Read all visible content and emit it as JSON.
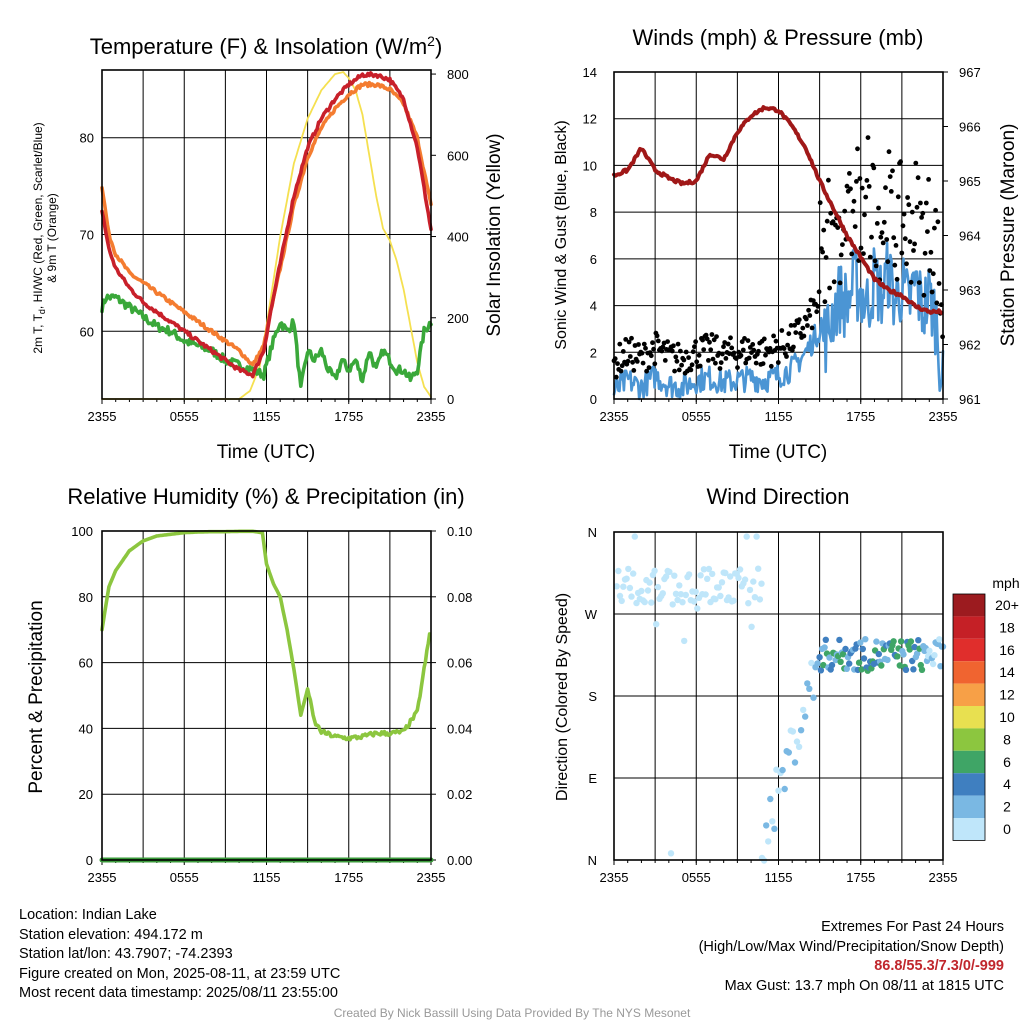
{
  "panels": {
    "temperature": {
      "title": "Temperature (F) & Insolation (W/m",
      "title_sup": "2",
      "title_close": ")",
      "ylabel_left_line1": "2m T, T",
      "ylabel_left_sub": "d",
      "ylabel_left_line1b": ", HI/WC (Red, Green, Scarlet/Blue)",
      "ylabel_left_line2": "& 9m T (Orange)",
      "ylabel_right": "Solar Insolation (Yellow)",
      "xlabel": "Time (UTC)"
    },
    "winds": {
      "title": "Winds (mph) & Pressure (mb)",
      "ylabel_left": "Sonic Wind & Gust (Blue, Black)",
      "ylabel_right": "Station Pressure (Maroon)",
      "xlabel": "Time (UTC)"
    },
    "humidity": {
      "title": "Relative Humidity (%) & Precipitation (in)",
      "ylabel_left": "Percent & Precipitation"
    },
    "direction": {
      "title": "Wind Direction",
      "ylabel_left": "Direction (Colored By Speed)",
      "legend_title": "mph"
    }
  },
  "info": {
    "location": "Location: Indian Lake",
    "elevation": "Station elevation: 494.172 m",
    "latlon": "Station lat/lon: 43.7907; -74.2393",
    "created": "Figure created on Mon, 2025-08-11, at 23:59 UTC",
    "recent": "Most recent data timestamp: 2025/08/11 23:55:00",
    "extremes_title": "Extremes For Past 24 Hours",
    "extremes_sub": "(High/Low/Max Wind/Precipitation/Snow Depth)",
    "extremes_values": "86.8/55.3/7.3/0/-999",
    "max_gust": "Max Gust: 13.7 mph On 08/11 at 1815 UTC",
    "credit": "Created By Nick Bassill Using Data Provided By The NYS Mesonet"
  },
  "colors": {
    "temp_red": "#c8202a",
    "temp_orange": "#f47c30",
    "dewpoint_green": "#3aa83a",
    "insolation_yellow": "#f5e050",
    "wind_blue": "#4b95d4",
    "gust_black": "#000000",
    "pressure_maroon": "#a01818",
    "rh_green": "#8cc63f",
    "precip_green": "#3a9a3a"
  },
  "chart_data": [
    {
      "type": "line",
      "panel": "temperature",
      "x_tick_labels": [
        "2355",
        "0555",
        "1155",
        "1755",
        "2355"
      ],
      "x_hours": [
        0,
        6,
        12,
        18,
        24
      ],
      "ylim_left": [
        53,
        87
      ],
      "yticks_left": [
        60,
        70,
        80
      ],
      "ylim_right": [
        0,
        810
      ],
      "yticks_right": [
        0,
        200,
        400,
        600,
        800
      ],
      "grid": true,
      "series": [
        {
          "name": "2m T (Red)",
          "axis": "left",
          "color": "#c8202a",
          "x": [
            0,
            0.5,
            1,
            2,
            3,
            4,
            5,
            6,
            7,
            8,
            9,
            10,
            11,
            11.8,
            12.3,
            13,
            14,
            15,
            16,
            17,
            18,
            19,
            20,
            21,
            22,
            23,
            24
          ],
          "y": [
            72.5,
            68.5,
            66.5,
            64.5,
            63,
            62,
            61,
            60,
            59,
            58,
            57,
            56,
            55.5,
            58,
            62,
            67,
            74,
            79,
            82,
            84,
            85.5,
            86.5,
            86.5,
            86,
            84,
            79,
            70.5
          ]
        },
        {
          "name": "9m T (Orange)",
          "axis": "left",
          "color": "#f47c30",
          "x": [
            0,
            0.5,
            1,
            2,
            3,
            4,
            5,
            6,
            7,
            8,
            9,
            10,
            11,
            11.8,
            12.3,
            13,
            14,
            15,
            16,
            17,
            18,
            19,
            20,
            21,
            22,
            23,
            24
          ],
          "y": [
            75,
            70,
            68,
            66,
            65,
            64,
            63,
            62,
            61,
            60,
            59,
            58,
            56.5,
            58.5,
            62,
            66.5,
            73,
            78,
            81,
            83,
            84.5,
            85.5,
            85.5,
            85,
            83.5,
            80,
            73
          ]
        },
        {
          "name": "Dewpoint (Green)",
          "axis": "left",
          "color": "#3aa83a",
          "x": [
            0,
            0.3,
            1,
            2,
            3,
            4,
            5,
            6,
            7,
            8,
            9,
            10,
            11,
            11.8,
            12.5,
            13,
            13.5,
            14,
            14.5,
            15,
            15.5,
            16,
            16.5,
            17,
            17.5,
            18,
            18.5,
            19,
            19.5,
            20,
            20.5,
            21,
            21.5,
            22,
            22.5,
            23,
            23.5,
            24
          ],
          "y": [
            62.5,
            63.5,
            63.5,
            62.5,
            61.5,
            60.5,
            60,
            59,
            58.5,
            58,
            57,
            56.5,
            56,
            55.5,
            59,
            61,
            60,
            61,
            54,
            58,
            57,
            58,
            56,
            55,
            57,
            56,
            57,
            55,
            58,
            56,
            58,
            57,
            56,
            56,
            55,
            56,
            60,
            61
          ]
        },
        {
          "name": "Solar Insolation (Yellow)",
          "axis": "right",
          "color": "#f5e050",
          "x": [
            0,
            5,
            10,
            10.8,
            11.5,
            12,
            13,
            14,
            15,
            16,
            17,
            17.6,
            18,
            18.5,
            19,
            19.5,
            20,
            20.5,
            21,
            21.5,
            22,
            22.5,
            23,
            23.5,
            24
          ],
          "y": [
            0,
            0,
            0,
            20,
            80,
            180,
            400,
            580,
            690,
            760,
            800,
            805,
            790,
            760,
            700,
            600,
            500,
            420,
            390,
            340,
            270,
            180,
            90,
            30,
            5
          ]
        }
      ]
    },
    {
      "type": "line",
      "panel": "winds",
      "x_tick_labels": [
        "2355",
        "0555",
        "1155",
        "1755",
        "2355"
      ],
      "x_hours": [
        0,
        6,
        12,
        18,
        24
      ],
      "ylim_left": [
        0,
        14
      ],
      "yticks_left": [
        0,
        2,
        4,
        6,
        8,
        10,
        12,
        14
      ],
      "ylim_right": [
        961,
        967
      ],
      "yticks_right": [
        961,
        962,
        963,
        964,
        965,
        966,
        967
      ],
      "grid": true,
      "series": [
        {
          "name": "Sonic Wind (Blue)",
          "axis": "left",
          "color": "#4b95d4",
          "x": [
            0,
            1,
            2,
            3,
            4,
            5,
            6,
            7,
            8,
            9,
            10,
            11,
            12,
            13,
            14,
            15,
            15.5,
            16,
            16.5,
            17,
            17.5,
            18,
            18.5,
            19,
            19.5,
            20,
            20.5,
            21,
            21.5,
            22,
            22.5,
            23,
            23.5,
            24
          ],
          "y": [
            0.3,
            0.8,
            0.5,
            1.0,
            0.6,
            0.5,
            0.8,
            0.9,
            0.7,
            0.8,
            0.9,
            0.8,
            1.0,
            1.3,
            2.0,
            3.0,
            2.6,
            3.8,
            4.4,
            4.0,
            5.0,
            4.6,
            4.0,
            5.2,
            4.4,
            5.4,
            4.2,
            4.8,
            4.0,
            5.0,
            3.8,
            4.4,
            3.4,
            0.5
          ]
        },
        {
          "name": "Station Pressure (Maroon)",
          "axis": "right",
          "color": "#a01818",
          "x": [
            0,
            1,
            2,
            3,
            4,
            5,
            6,
            7,
            8,
            9,
            10,
            11,
            12,
            13,
            14,
            15,
            16,
            17,
            18,
            19,
            20,
            21,
            22,
            23,
            24
          ],
          "y": [
            965.1,
            965.2,
            965.6,
            965.2,
            965.05,
            964.95,
            965.0,
            965.5,
            965.4,
            965.9,
            966.2,
            966.35,
            966.3,
            966.0,
            965.6,
            965.0,
            964.5,
            964.0,
            963.6,
            963.2,
            963.0,
            962.9,
            962.7,
            962.6,
            962.6
          ]
        }
      ],
      "gust_points_note": "Gust (Black) scatter, values 0-13.7 mph"
    },
    {
      "type": "line",
      "panel": "humidity",
      "x_tick_labels": [
        "2355",
        "0555",
        "1155",
        "1755",
        "2355"
      ],
      "x_hours": [
        0,
        6,
        12,
        18,
        24
      ],
      "ylim_left": [
        0,
        100
      ],
      "yticks_left": [
        0,
        20,
        40,
        60,
        80,
        100
      ],
      "ylim_right": [
        0,
        0.1
      ],
      "yticks_right": [
        "0.00",
        "0.02",
        "0.04",
        "0.06",
        "0.08",
        "0.10"
      ],
      "grid": true,
      "series": [
        {
          "name": "Relative Humidity",
          "axis": "left",
          "color": "#8cc63f",
          "x": [
            0,
            0.5,
            1,
            2,
            3,
            4,
            5,
            6,
            7,
            8,
            9,
            10,
            11,
            11.7,
            12,
            12.5,
            13,
            13.5,
            14,
            14.5,
            15,
            15.5,
            16,
            17,
            18,
            19,
            20,
            21,
            22,
            23,
            23.5,
            24
          ],
          "y": [
            70,
            83,
            88,
            94,
            97,
            98.5,
            99,
            99.5,
            99.7,
            99.8,
            99.8,
            99.9,
            99.9,
            99.5,
            90,
            84,
            80,
            70,
            58,
            44,
            52,
            42,
            39,
            37.5,
            37,
            37.5,
            38.5,
            38.5,
            39,
            45,
            58,
            71
          ]
        },
        {
          "name": "Precipitation",
          "axis": "right",
          "color": "#3a9a3a",
          "x": [
            0,
            24
          ],
          "y": [
            0,
            0
          ]
        }
      ]
    },
    {
      "type": "scatter",
      "panel": "direction",
      "x_tick_labels": [
        "2355",
        "0555",
        "1155",
        "1755",
        "2355"
      ],
      "x_hours": [
        0,
        6,
        12,
        18,
        24
      ],
      "y_tick_labels": [
        "N",
        "E",
        "S",
        "W",
        "N"
      ],
      "ylim": [
        0,
        360
      ],
      "grid": true,
      "colorbar": {
        "labels": [
          "20+",
          "18",
          "16",
          "14",
          "12",
          "10",
          "8",
          "6",
          "4",
          "2",
          "0"
        ],
        "colors": [
          "#9c1b1f",
          "#c52026",
          "#e02e2c",
          "#f06430",
          "#f7a047",
          "#e8e050",
          "#8cc63f",
          "#3fa566",
          "#3f7fc0",
          "#7ab8e3",
          "#bfe6fa"
        ]
      },
      "points_note": "Light blue (0-2 mph) scattered near 270-330 deg from 0000-1000 UTC, turning to 180-240 deg from 1200-2400 UTC with 2-8 mph colors"
    }
  ]
}
